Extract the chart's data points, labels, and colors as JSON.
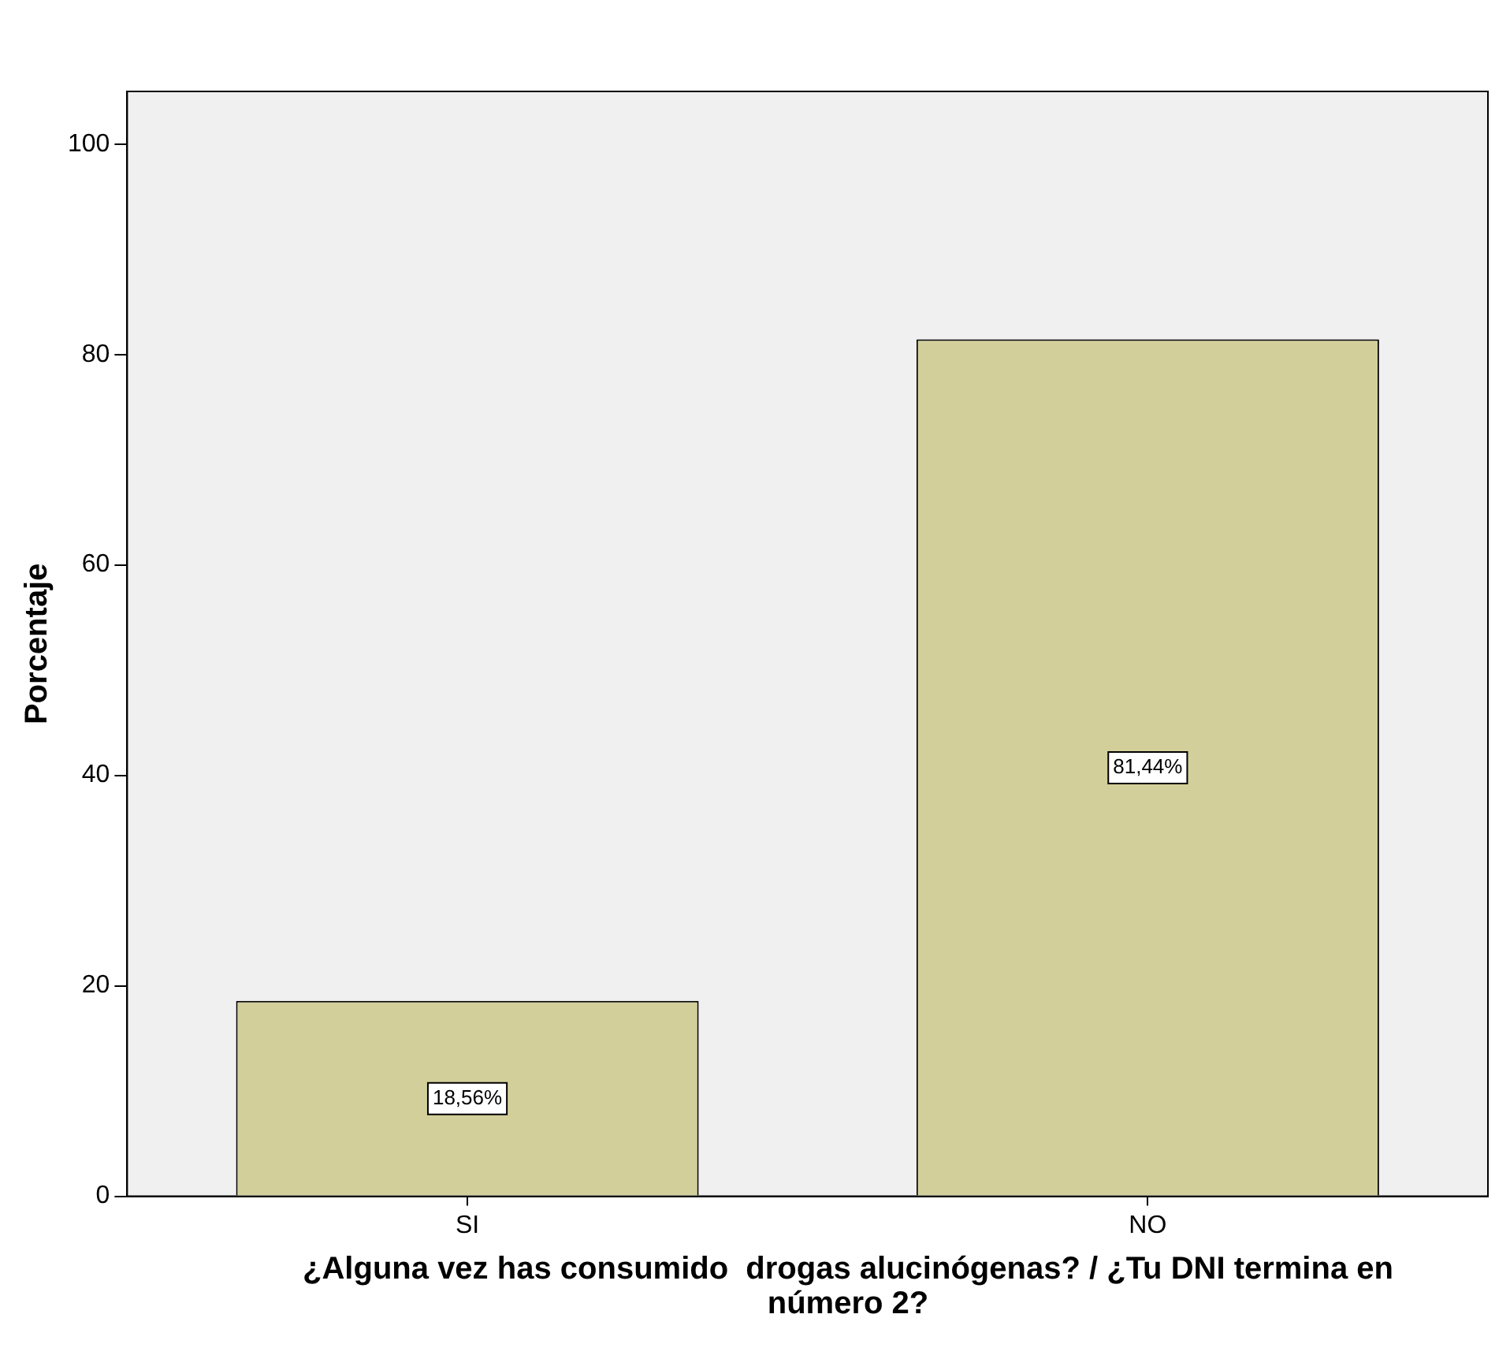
{
  "chart_data": {
    "type": "bar",
    "xlabel": "¿Alguna vez has consumido  drogas alucinógenas? / ¿Tu DNI termina en número 2?",
    "ylabel": "Porcentaje",
    "categories": [
      "SI",
      "NO"
    ],
    "values": [
      18.56,
      81.44
    ],
    "value_labels": [
      "18,56%",
      "81,44%"
    ],
    "color": "#d3cf9a",
    "ylim": [
      0,
      105
    ],
    "yticks": [
      0,
      20,
      40,
      60,
      80,
      100
    ]
  }
}
